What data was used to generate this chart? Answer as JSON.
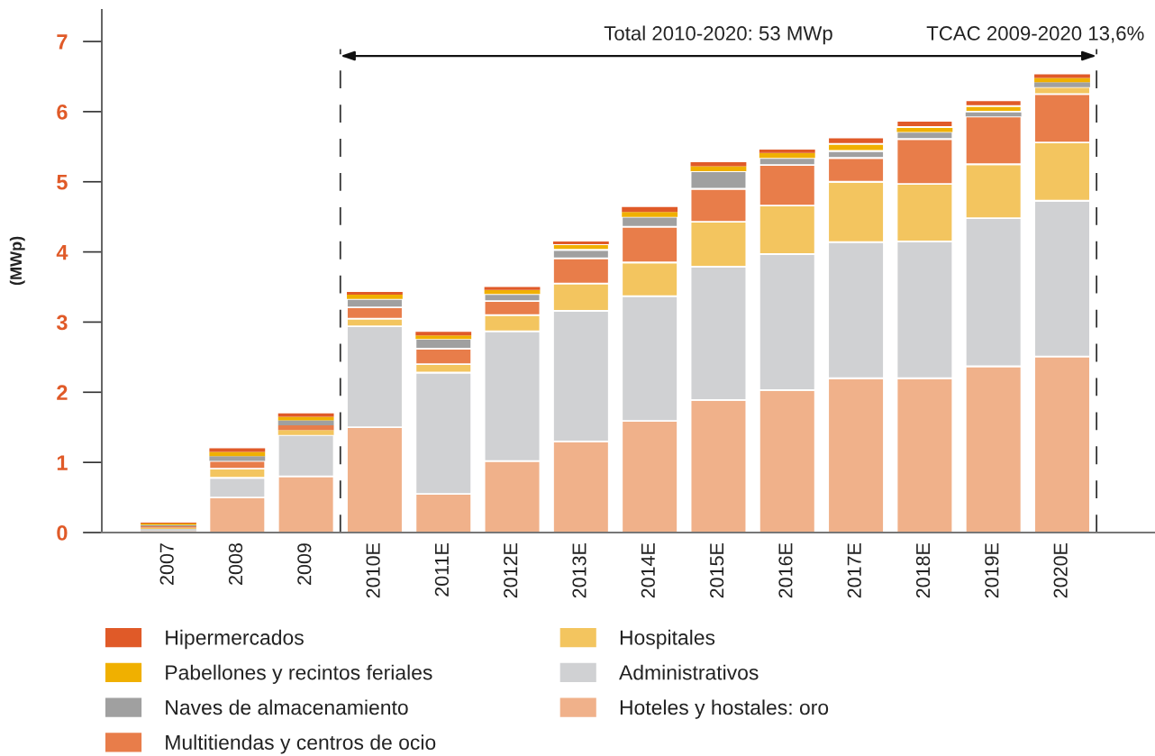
{
  "chart_data": {
    "type": "bar",
    "stacked": true,
    "ylabel": "(MWp)",
    "x": [
      2007,
      2008,
      2009,
      2010,
      2011,
      2012,
      2013,
      2014,
      2015,
      2016,
      2017,
      2018,
      2019,
      2020
    ],
    "series": [
      {
        "name": "Hoteles y hostales: oro",
        "color": "#f0b18a",
        "values": [
          0.02,
          0.5,
          0.8,
          1.5,
          0.55,
          1.02,
          1.3,
          1.59,
          1.89,
          2.03,
          2.2,
          2.2,
          2.37,
          2.51
        ]
      },
      {
        "name": "Administrativos",
        "color": "#d0d1d3",
        "values": [
          0.03,
          0.28,
          0.59,
          1.44,
          1.73,
          1.85,
          1.86,
          1.78,
          1.9,
          1.94,
          1.94,
          1.95,
          2.11,
          2.22
        ]
      },
      {
        "name": "Hospitales",
        "color": "#f3c55f",
        "values": [
          0.02,
          0.13,
          0.07,
          0.11,
          0.12,
          0.23,
          0.39,
          0.48,
          0.64,
          0.69,
          0.86,
          0.82,
          0.77,
          0.83
        ]
      },
      {
        "name": "Multitiendas y centros de ocio",
        "color": "#e87d4a",
        "values": [
          0.02,
          0.11,
          0.07,
          0.16,
          0.22,
          0.2,
          0.36,
          0.51,
          0.47,
          0.58,
          0.34,
          0.64,
          0.68,
          0.69
        ]
      },
      {
        "color": "#f3c55f",
        "values": [
          null,
          null,
          null,
          null,
          null,
          null,
          null,
          null,
          null,
          null,
          null,
          null,
          null,
          0.1
        ]
      },
      {
        "name": "Naves de almacenamiento",
        "color": "#a0a0a0",
        "values": [
          0.02,
          0.07,
          0.07,
          0.12,
          0.14,
          0.1,
          0.12,
          0.14,
          0.25,
          0.1,
          0.1,
          0.1,
          0.07,
          0.07
        ]
      },
      {
        "name": "Pabellones y recintos feriales",
        "color": "#f0b000",
        "values": [
          0.02,
          0.06,
          0.05,
          0.06,
          0.05,
          0.06,
          0.08,
          0.07,
          0.07,
          0.07,
          0.1,
          0.07,
          0.08,
          0.06
        ]
      },
      {
        "name": "Hipermercados",
        "color": "#e05a28",
        "values": [
          0.01,
          0.05,
          0.05,
          0.04,
          0.05,
          0.04,
          0.04,
          0.07,
          0.06,
          0.05,
          0.09,
          0.09,
          0.08,
          0.05
        ]
      }
    ],
    "xlim": [
      2006.03,
      2021.35
    ],
    "xticks": [
      2007,
      2008,
      2009,
      {
        "value": 2010,
        "label": "2010E"
      },
      {
        "value": 2011,
        "label": "2011E"
      },
      {
        "value": 2012,
        "label": "2012E"
      },
      {
        "value": 2013,
        "label": "2013E"
      },
      {
        "value": 2014,
        "label": "2014E"
      },
      {
        "value": 2015,
        "label": "2015E"
      },
      {
        "value": 2016,
        "label": "2016E"
      },
      {
        "value": 2017,
        "label": "2017E"
      },
      {
        "value": 2018,
        "label": "2018E"
      },
      {
        "value": 2019,
        "label": "2019E"
      },
      {
        "value": 2020,
        "label": "2020E"
      }
    ],
    "ylim": [
      0,
      7.45
    ],
    "yticks": [
      0,
      1,
      2,
      3,
      4,
      5,
      6,
      7
    ],
    "ref_lines": [
      {
        "axis": "x",
        "value": 2009.5,
        "line_style": "dashed"
      },
      {
        "axis": "x",
        "value": 2020.5,
        "line_style": "dashed"
      }
    ],
    "annotations": [
      "Total 2010-2020: 53 MWp",
      "TCAC 2009-2020 13,6%"
    ],
    "legend": "bottom"
  }
}
